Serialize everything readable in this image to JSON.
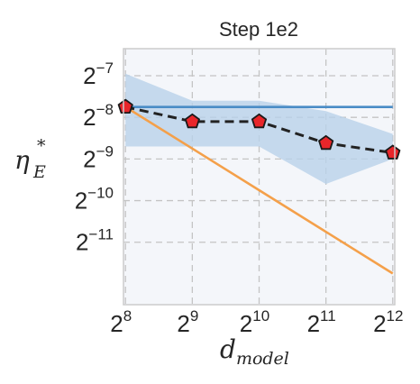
{
  "chart_data": {
    "type": "line",
    "title": "Step 1e2",
    "xlabel": {
      "base": "d",
      "sub": "model"
    },
    "ylabel": {
      "base": "η",
      "sup": "*",
      "sub": "E"
    },
    "x_scale": "log2",
    "y_scale": "log2",
    "x": [
      256,
      512,
      1024,
      2048,
      4096
    ],
    "xticks": [
      {
        "base": "2",
        "exp": "8"
      },
      {
        "base": "2",
        "exp": "9"
      },
      {
        "base": "2",
        "exp": "10"
      },
      {
        "base": "2",
        "exp": "11"
      },
      {
        "base": "2",
        "exp": "12"
      }
    ],
    "yticks": [
      {
        "base": "2",
        "exp": "−7"
      },
      {
        "base": "2",
        "exp": "−8"
      },
      {
        "base": "2",
        "exp": "−9"
      },
      {
        "base": "2",
        "exp": "−10"
      },
      {
        "base": "2",
        "exp": "−11"
      }
    ],
    "xlim_log2": [
      7.97,
      12.03
    ],
    "ylim_log2": [
      -12.5,
      -6.35
    ],
    "grid": true,
    "series": [
      {
        "style": "dashed-markers",
        "color": "#222222",
        "marker_color": "#e8262a",
        "y_log2": [
          -7.75,
          -8.1,
          -8.1,
          -8.62,
          -8.85
        ]
      },
      {
        "style": "solid",
        "color": "#4a8cc6",
        "y_log2": [
          -7.75,
          -7.75,
          -7.75,
          -7.75,
          -7.75
        ]
      },
      {
        "style": "solid",
        "color": "#f4a04a",
        "y_log2": [
          -7.75,
          -8.75,
          -9.75,
          -10.75,
          -11.75
        ]
      }
    ],
    "band": {
      "color": "#b9d2ea",
      "upper_log2": [
        -6.95,
        -7.6,
        -7.6,
        -7.85,
        -8.4
      ],
      "lower_log2": [
        -8.7,
        -8.7,
        -8.7,
        -9.6,
        -9.0
      ]
    }
  }
}
